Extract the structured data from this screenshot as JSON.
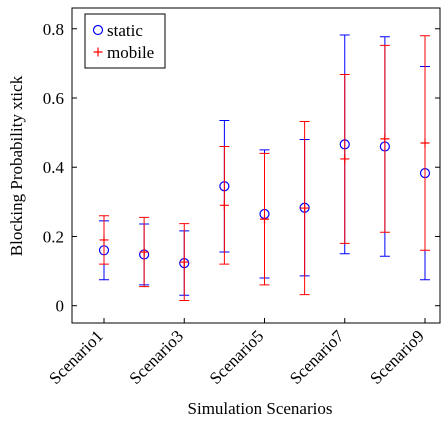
{
  "chart_data": {
    "type": "errorbar",
    "x_label": "Simulation Scenarios",
    "y_label": "Blocking Probability xtick",
    "categories": [
      "Scenario1",
      null,
      "Scenario3",
      null,
      "Scenario5",
      null,
      "Scenario7",
      null,
      "Scenario9"
    ],
    "series": [
      {
        "name": "static",
        "color": "#0000ff",
        "marker": "circle",
        "values": [
          0.16,
          0.148,
          0.123,
          0.345,
          0.265,
          0.283,
          0.466,
          0.46,
          0.383
        ],
        "errors": [
          0.085,
          0.088,
          0.093,
          0.19,
          0.185,
          0.197,
          0.316,
          0.317,
          0.308
        ]
      },
      {
        "name": "mobile",
        "color": "#ff0000",
        "marker": "plus",
        "values": [
          0.19,
          0.155,
          0.126,
          0.29,
          0.25,
          0.282,
          0.424,
          0.482,
          0.47
        ],
        "errors": [
          0.07,
          0.1,
          0.111,
          0.17,
          0.19,
          0.25,
          0.244,
          0.27,
          0.31
        ]
      }
    ],
    "ylim": [
      -0.05,
      0.86
    ],
    "yticks": [
      0,
      0.2,
      0.4,
      0.6,
      0.8
    ],
    "legend": "upper left"
  }
}
